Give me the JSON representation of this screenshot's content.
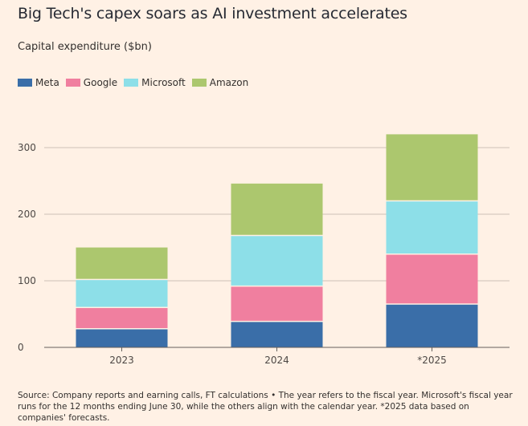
{
  "header": {
    "title": "Big Tech's capex soars as AI investment accelerates",
    "subtitle": "Capital expenditure ($bn)"
  },
  "footer": {
    "source": "Source: Company reports and earning calls, FT calculations • The year refers to the fiscal year. Microsoft's fiscal year runs for the 12 months ending June 30, while the others align with the calendar year. *2025 data based on companies' forecasts."
  },
  "chart_data": {
    "type": "bar",
    "stacked": true,
    "title": "Big Tech's capex soars as AI investment accelerates",
    "ylabel": "Capital expenditure ($bn)",
    "categories": [
      "2023",
      "2024",
      "*2025"
    ],
    "ylim": [
      0,
      320
    ],
    "yticks": [
      0,
      100,
      200,
      300
    ],
    "grid": true,
    "legend_position": "top-left",
    "series": [
      {
        "name": "Meta",
        "color": "#3a6ea8",
        "values": [
          28,
          39,
          65
        ]
      },
      {
        "name": "Google",
        "color": "#f07f9f",
        "values": [
          32,
          53,
          75
        ]
      },
      {
        "name": "Microsoft",
        "color": "#8ddfe8",
        "values": [
          42,
          76,
          80
        ]
      },
      {
        "name": "Amazon",
        "color": "#acc76e",
        "values": [
          48,
          78,
          100
        ]
      }
    ]
  }
}
